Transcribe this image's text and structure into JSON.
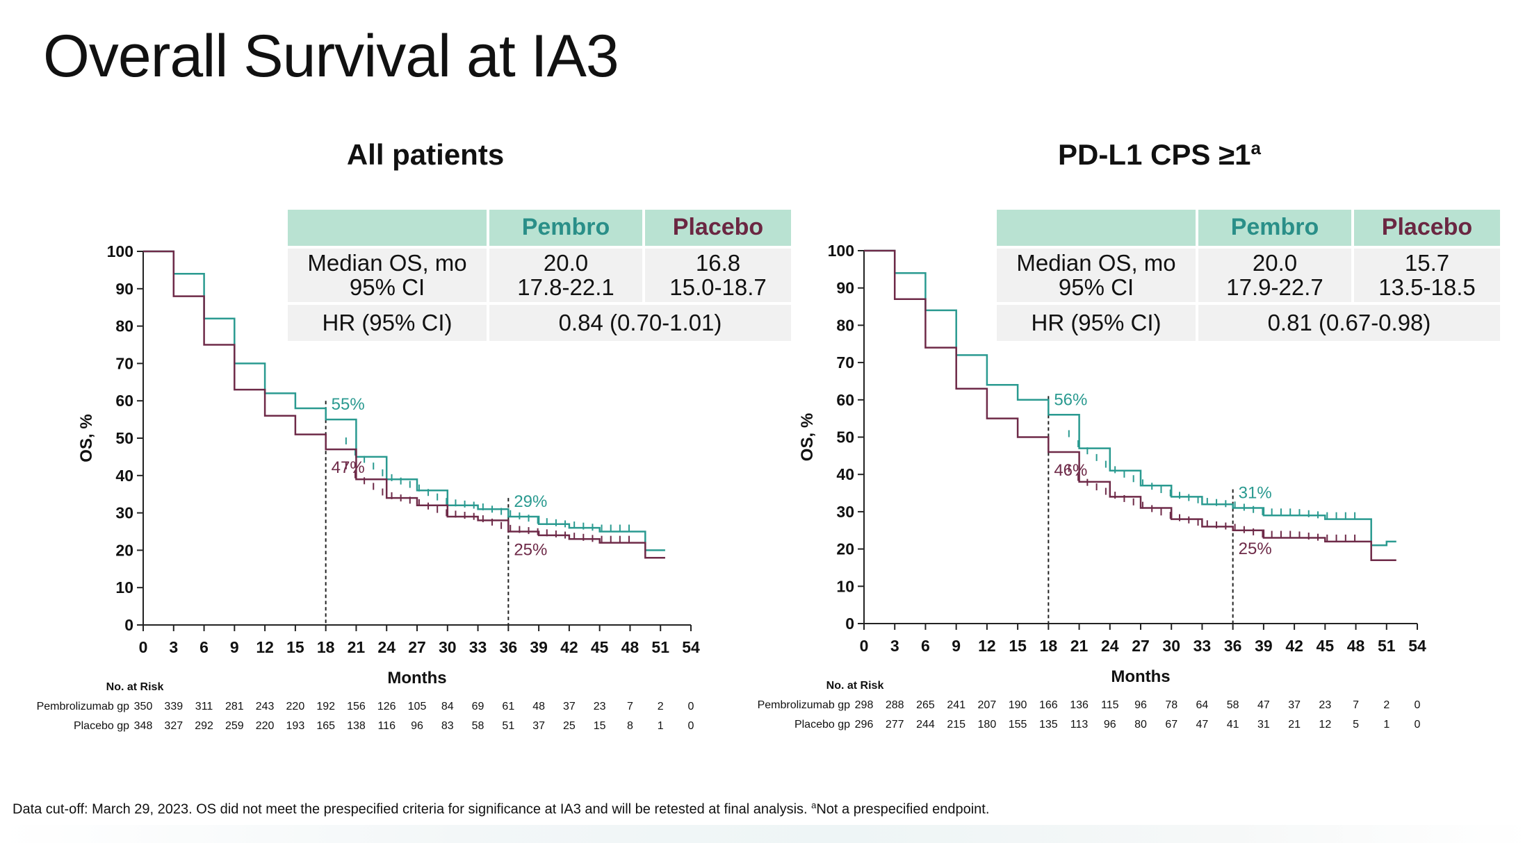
{
  "slide": {
    "title": "Overall Survival at IA3",
    "footnote": "Data cut-off: March 29, 2023. OS did not meet the prespecified criteria for significance at IA3 and will be retested at final analysis. ",
    "footnote_sup": "a",
    "footnote_tail": "Not a prespecified endpoint."
  },
  "colors": {
    "pembro": "#2a9a90",
    "placebo": "#6e2a48",
    "table_header": "#b9e2d2",
    "table_body": "#f1f1f1"
  },
  "panels": [
    {
      "title": "All patients",
      "title_sup": "",
      "table": {
        "col_pembro": "Pembro",
        "col_placebo": "Placebo",
        "median_label": "Median OS, mo",
        "ci_label": "95% CI",
        "pembro_median": "20.0",
        "pembro_ci": "17.8-22.1",
        "placebo_median": "16.8",
        "placebo_ci": "15.0-18.7",
        "hr_label": "HR (95% CI)",
        "hr_value": "0.84 (0.70-1.01)"
      },
      "risk": {
        "header": "No. at Risk",
        "pembro_label": "Pembrolizumab gp",
        "placebo_label": "Placebo gp",
        "pembro": [
          "350",
          "339",
          "311",
          "281",
          "243",
          "220",
          "192",
          "156",
          "126",
          "105",
          "84",
          "69",
          "61",
          "48",
          "37",
          "23",
          "7",
          "2",
          "0"
        ],
        "placebo": [
          "348",
          "327",
          "292",
          "259",
          "220",
          "193",
          "165",
          "138",
          "116",
          "96",
          "83",
          "58",
          "51",
          "37",
          "25",
          "15",
          "8",
          "1",
          "0"
        ]
      }
    },
    {
      "title": "PD-L1 CPS ≥1",
      "title_sup": "a",
      "table": {
        "col_pembro": "Pembro",
        "col_placebo": "Placebo",
        "median_label": "Median OS, mo",
        "ci_label": "95% CI",
        "pembro_median": "20.0",
        "pembro_ci": "17.9-22.7",
        "placebo_median": "15.7",
        "placebo_ci": "13.5-18.5",
        "hr_label": "HR (95% CI)",
        "hr_value": "0.81 (0.67-0.98)"
      },
      "risk": {
        "header": "No. at Risk",
        "pembro_label": "Pembrolizumab gp",
        "placebo_label": "Placebo gp",
        "pembro": [
          "298",
          "288",
          "265",
          "241",
          "207",
          "190",
          "166",
          "136",
          "115",
          "96",
          "78",
          "64",
          "58",
          "47",
          "37",
          "23",
          "7",
          "2",
          "0"
        ],
        "placebo": [
          "296",
          "277",
          "244",
          "215",
          "180",
          "155",
          "135",
          "113",
          "96",
          "80",
          "67",
          "47",
          "41",
          "31",
          "21",
          "12",
          "5",
          "1",
          "0"
        ]
      }
    }
  ],
  "chart_data": [
    {
      "type": "line",
      "title": "All patients",
      "xlabel": "Months",
      "ylabel": "OS, %",
      "xlim": [
        0,
        54
      ],
      "ylim": [
        0,
        100
      ],
      "xticks": [
        0,
        3,
        6,
        9,
        12,
        15,
        18,
        21,
        24,
        27,
        30,
        33,
        36,
        39,
        42,
        45,
        48,
        51,
        54
      ],
      "yticks": [
        0,
        10,
        20,
        30,
        40,
        50,
        60,
        70,
        80,
        90,
        100
      ],
      "landmarks": [
        18,
        36
      ],
      "annotations": [
        {
          "series": "Pembro",
          "x": 18,
          "label": "55%"
        },
        {
          "series": "Placebo",
          "x": 18,
          "label": "47%"
        },
        {
          "series": "Pembro",
          "x": 36,
          "label": "29%"
        },
        {
          "series": "Placebo",
          "x": 36,
          "label": "25%"
        }
      ],
      "series": [
        {
          "name": "Pembro",
          "x": [
            0,
            3,
            6,
            9,
            12,
            15,
            18,
            21,
            24,
            27,
            30,
            33,
            36,
            39,
            42,
            45,
            48,
            49.5,
            50.5
          ],
          "values": [
            100,
            94,
            82,
            70,
            62,
            58,
            55,
            45,
            39,
            36,
            32,
            31,
            29,
            27,
            26,
            25,
            25,
            20,
            20
          ]
        },
        {
          "name": "Placebo",
          "x": [
            0,
            3,
            6,
            9,
            12,
            15,
            18,
            21,
            24,
            27,
            30,
            33,
            36,
            39,
            42,
            45,
            48,
            49.5,
            50.5
          ],
          "values": [
            100,
            88,
            75,
            63,
            56,
            51,
            47,
            39,
            34,
            32,
            29,
            28,
            25,
            24,
            23,
            22,
            22,
            18,
            18
          ]
        }
      ]
    },
    {
      "type": "line",
      "title": "PD-L1 CPS ≥1",
      "xlabel": "Months",
      "ylabel": "OS, %",
      "xlim": [
        0,
        54
      ],
      "ylim": [
        0,
        100
      ],
      "xticks": [
        0,
        3,
        6,
        9,
        12,
        15,
        18,
        21,
        24,
        27,
        30,
        33,
        36,
        39,
        42,
        45,
        48,
        51,
        54
      ],
      "yticks": [
        0,
        10,
        20,
        30,
        40,
        50,
        60,
        70,
        80,
        90,
        100
      ],
      "landmarks": [
        18,
        36
      ],
      "annotations": [
        {
          "series": "Pembro",
          "x": 18,
          "label": "56%"
        },
        {
          "series": "Placebo",
          "x": 18,
          "label": "46%"
        },
        {
          "series": "Pembro",
          "x": 36,
          "label": "31%"
        },
        {
          "series": "Placebo",
          "x": 36,
          "label": "25%"
        }
      ],
      "series": [
        {
          "name": "Pembro",
          "x": [
            0,
            3,
            6,
            9,
            12,
            15,
            18,
            21,
            24,
            27,
            30,
            33,
            36,
            39,
            42,
            45,
            48,
            49.5,
            51
          ],
          "values": [
            100,
            94,
            84,
            72,
            64,
            60,
            56,
            47,
            41,
            37,
            34,
            32,
            31,
            29,
            29,
            28,
            28,
            21,
            22
          ]
        },
        {
          "name": "Placebo",
          "x": [
            0,
            3,
            6,
            9,
            12,
            15,
            18,
            21,
            24,
            27,
            30,
            33,
            36,
            39,
            42,
            45,
            48,
            49.5,
            51
          ],
          "values": [
            100,
            87,
            74,
            63,
            55,
            50,
            46,
            38,
            34,
            31,
            28,
            26,
            25,
            23,
            23,
            22,
            22,
            17,
            17
          ]
        }
      ]
    }
  ]
}
